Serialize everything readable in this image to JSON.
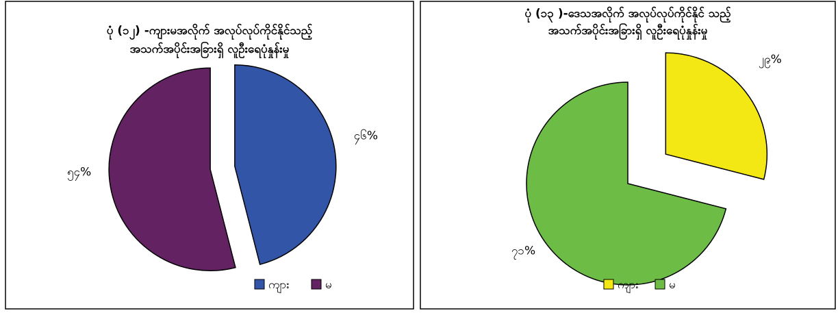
{
  "chart_data": [
    {
      "type": "pie",
      "title": [
        "ပုံ (၁၂) -ကျားမအလိုက် အလုပ်လုပ်ကိုင်နိုင်သည့်",
        "အသက်အပိုင်းအခြားရှိ လူဦးရေပုံနှုန်းမှု"
      ],
      "categories": [
        "ကျား",
        "မ"
      ],
      "values": [
        46,
        54
      ],
      "value_labels": [
        "၄၆%",
        "၅၄%"
      ],
      "colors": [
        "#3355a8",
        "#632262"
      ],
      "legend": "bottom"
    },
    {
      "type": "pie",
      "title": [
        "ပုံ (၁၃ )-ဒေသအလိုက် အလုပ်လုပ်ကိုင်နိုင် သည့်",
        "အသက်အပိုင်းအခြားရှိ လူဦးရေပုံနှုန်းမှု"
      ],
      "categories": [
        "ကျား",
        "မ"
      ],
      "values": [
        29,
        71
      ],
      "value_labels": [
        "၂၉%",
        "၇၁%"
      ],
      "colors": [
        "#f4e814",
        "#6cbc46"
      ],
      "legend": "bottom"
    }
  ]
}
